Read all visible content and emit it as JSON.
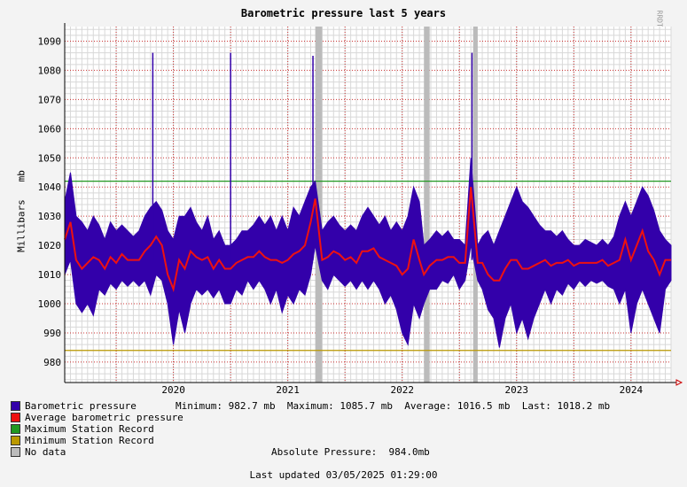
{
  "chart_data": {
    "type": "line",
    "title": "Barometric pressure last 5 years",
    "ylabel": "Millibars",
    "yunit": "mb",
    "ylim": [
      973,
      1095
    ],
    "yticks": [
      980,
      990,
      1000,
      1010,
      1020,
      1030,
      1040,
      1050,
      1060,
      1070,
      1080,
      1090
    ],
    "xlim": [
      2019.55,
      2024.85
    ],
    "xticks": [
      "2020",
      "2021",
      "2022",
      "2023",
      "2024"
    ],
    "grid": true,
    "series": [
      {
        "name": "Barometric pressure",
        "color": "#3300aa"
      },
      {
        "name": "Average barometric pressure",
        "color": "#ee1111"
      }
    ],
    "reference_lines": [
      {
        "name": "Maximum Station Record",
        "value": 1042,
        "color": "#229922"
      },
      {
        "name": "Minimum Station Record",
        "value": 984,
        "color": "#bb9900"
      }
    ],
    "no_data": [
      {
        "name": "No data",
        "from": 2021.74,
        "to": 2021.8
      },
      {
        "name": "No data",
        "from": 2022.69,
        "to": 2022.74
      },
      {
        "name": "No data",
        "from": 2023.12,
        "to": 2023.16
      }
    ],
    "spikes": [
      {
        "x": 2020.32,
        "y": 1086
      },
      {
        "x": 2021.0,
        "y": 1086
      },
      {
        "x": 2021.72,
        "y": 1085
      },
      {
        "x": 2023.11,
        "y": 1086
      }
    ],
    "envelope": [
      {
        "x": 2019.55,
        "lo": 1010,
        "hi": 1035,
        "avg": 1022
      },
      {
        "x": 2019.6,
        "lo": 1015,
        "hi": 1045,
        "avg": 1028
      },
      {
        "x": 2019.65,
        "lo": 1000,
        "hi": 1030,
        "avg": 1015
      },
      {
        "x": 2019.7,
        "lo": 997,
        "hi": 1028,
        "avg": 1012
      },
      {
        "x": 2019.75,
        "lo": 1000,
        "hi": 1025,
        "avg": 1014
      },
      {
        "x": 2019.8,
        "lo": 996,
        "hi": 1030,
        "avg": 1016
      },
      {
        "x": 2019.85,
        "lo": 1005,
        "hi": 1027,
        "avg": 1015
      },
      {
        "x": 2019.9,
        "lo": 1003,
        "hi": 1022,
        "avg": 1012
      },
      {
        "x": 2019.95,
        "lo": 1007,
        "hi": 1028,
        "avg": 1016
      },
      {
        "x": 2020.0,
        "lo": 1005,
        "hi": 1025,
        "avg": 1014
      },
      {
        "x": 2020.05,
        "lo": 1008,
        "hi": 1027,
        "avg": 1017
      },
      {
        "x": 2020.1,
        "lo": 1006,
        "hi": 1025,
        "avg": 1015
      },
      {
        "x": 2020.15,
        "lo": 1008,
        "hi": 1023,
        "avg": 1015
      },
      {
        "x": 2020.2,
        "lo": 1006,
        "hi": 1025,
        "avg": 1015
      },
      {
        "x": 2020.25,
        "lo": 1008,
        "hi": 1030,
        "avg": 1018
      },
      {
        "x": 2020.3,
        "lo": 1003,
        "hi": 1033,
        "avg": 1020
      },
      {
        "x": 2020.35,
        "lo": 1010,
        "hi": 1035,
        "avg": 1023
      },
      {
        "x": 2020.4,
        "lo": 1008,
        "hi": 1032,
        "avg": 1020
      },
      {
        "x": 2020.45,
        "lo": 1000,
        "hi": 1025,
        "avg": 1010
      },
      {
        "x": 2020.5,
        "lo": 986,
        "hi": 1022,
        "avg": 1005
      },
      {
        "x": 2020.55,
        "lo": 998,
        "hi": 1030,
        "avg": 1015
      },
      {
        "x": 2020.6,
        "lo": 990,
        "hi": 1030,
        "avg": 1012
      },
      {
        "x": 2020.65,
        "lo": 1000,
        "hi": 1033,
        "avg": 1018
      },
      {
        "x": 2020.7,
        "lo": 1005,
        "hi": 1028,
        "avg": 1016
      },
      {
        "x": 2020.75,
        "lo": 1003,
        "hi": 1025,
        "avg": 1015
      },
      {
        "x": 2020.8,
        "lo": 1005,
        "hi": 1030,
        "avg": 1016
      },
      {
        "x": 2020.85,
        "lo": 1002,
        "hi": 1022,
        "avg": 1012
      },
      {
        "x": 2020.9,
        "lo": 1005,
        "hi": 1025,
        "avg": 1015
      },
      {
        "x": 2020.95,
        "lo": 1000,
        "hi": 1020,
        "avg": 1012
      },
      {
        "x": 2021.0,
        "lo": 1000,
        "hi": 1020,
        "avg": 1012
      },
      {
        "x": 2021.05,
        "lo": 1005,
        "hi": 1022,
        "avg": 1014
      },
      {
        "x": 2021.1,
        "lo": 1003,
        "hi": 1025,
        "avg": 1015
      },
      {
        "x": 2021.15,
        "lo": 1008,
        "hi": 1025,
        "avg": 1016
      },
      {
        "x": 2021.2,
        "lo": 1005,
        "hi": 1027,
        "avg": 1016
      },
      {
        "x": 2021.25,
        "lo": 1008,
        "hi": 1030,
        "avg": 1018
      },
      {
        "x": 2021.3,
        "lo": 1005,
        "hi": 1027,
        "avg": 1016
      },
      {
        "x": 2021.35,
        "lo": 1000,
        "hi": 1030,
        "avg": 1015
      },
      {
        "x": 2021.4,
        "lo": 1005,
        "hi": 1025,
        "avg": 1015
      },
      {
        "x": 2021.45,
        "lo": 997,
        "hi": 1030,
        "avg": 1014
      },
      {
        "x": 2021.5,
        "lo": 1003,
        "hi": 1025,
        "avg": 1015
      },
      {
        "x": 2021.55,
        "lo": 1000,
        "hi": 1033,
        "avg": 1017
      },
      {
        "x": 2021.6,
        "lo": 1005,
        "hi": 1030,
        "avg": 1018
      },
      {
        "x": 2021.65,
        "lo": 1003,
        "hi": 1035,
        "avg": 1020
      },
      {
        "x": 2021.7,
        "lo": 1010,
        "hi": 1040,
        "avg": 1028
      },
      {
        "x": 2021.74,
        "lo": 1020,
        "hi": 1042,
        "avg": 1036
      },
      {
        "x": 2021.8,
        "lo": 1008,
        "hi": 1025,
        "avg": 1015
      },
      {
        "x": 2021.85,
        "lo": 1005,
        "hi": 1028,
        "avg": 1016
      },
      {
        "x": 2021.9,
        "lo": 1010,
        "hi": 1030,
        "avg": 1018
      },
      {
        "x": 2021.95,
        "lo": 1008,
        "hi": 1027,
        "avg": 1017
      },
      {
        "x": 2022.0,
        "lo": 1006,
        "hi": 1025,
        "avg": 1015
      },
      {
        "x": 2022.05,
        "lo": 1008,
        "hi": 1027,
        "avg": 1016
      },
      {
        "x": 2022.1,
        "lo": 1005,
        "hi": 1025,
        "avg": 1014
      },
      {
        "x": 2022.15,
        "lo": 1008,
        "hi": 1030,
        "avg": 1018
      },
      {
        "x": 2022.2,
        "lo": 1005,
        "hi": 1033,
        "avg": 1018
      },
      {
        "x": 2022.25,
        "lo": 1008,
        "hi": 1030,
        "avg": 1019
      },
      {
        "x": 2022.3,
        "lo": 1005,
        "hi": 1027,
        "avg": 1016
      },
      {
        "x": 2022.35,
        "lo": 1000,
        "hi": 1030,
        "avg": 1015
      },
      {
        "x": 2022.4,
        "lo": 1003,
        "hi": 1025,
        "avg": 1014
      },
      {
        "x": 2022.45,
        "lo": 998,
        "hi": 1028,
        "avg": 1013
      },
      {
        "x": 2022.5,
        "lo": 990,
        "hi": 1025,
        "avg": 1010
      },
      {
        "x": 2022.55,
        "lo": 986,
        "hi": 1030,
        "avg": 1012
      },
      {
        "x": 2022.6,
        "lo": 1000,
        "hi": 1040,
        "avg": 1022
      },
      {
        "x": 2022.65,
        "lo": 995,
        "hi": 1035,
        "avg": 1015
      },
      {
        "x": 2022.69,
        "lo": 1000,
        "hi": 1020,
        "avg": 1010
      },
      {
        "x": 2022.74,
        "lo": 1005,
        "hi": 1022,
        "avg": 1013
      },
      {
        "x": 2022.8,
        "lo": 1005,
        "hi": 1025,
        "avg": 1015
      },
      {
        "x": 2022.85,
        "lo": 1008,
        "hi": 1023,
        "avg": 1015
      },
      {
        "x": 2022.9,
        "lo": 1007,
        "hi": 1025,
        "avg": 1016
      },
      {
        "x": 2022.95,
        "lo": 1010,
        "hi": 1022,
        "avg": 1016
      },
      {
        "x": 2023.0,
        "lo": 1005,
        "hi": 1022,
        "avg": 1014
      },
      {
        "x": 2023.05,
        "lo": 1008,
        "hi": 1020,
        "avg": 1014
      },
      {
        "x": 2023.1,
        "lo": 1020,
        "hi": 1050,
        "avg": 1040
      },
      {
        "x": 2023.16,
        "lo": 1008,
        "hi": 1020,
        "avg": 1014
      },
      {
        "x": 2023.2,
        "lo": 1005,
        "hi": 1023,
        "avg": 1014
      },
      {
        "x": 2023.25,
        "lo": 998,
        "hi": 1025,
        "avg": 1010
      },
      {
        "x": 2023.3,
        "lo": 995,
        "hi": 1020,
        "avg": 1008
      },
      {
        "x": 2023.35,
        "lo": 985,
        "hi": 1025,
        "avg": 1008
      },
      {
        "x": 2023.4,
        "lo": 995,
        "hi": 1030,
        "avg": 1012
      },
      {
        "x": 2023.45,
        "lo": 1000,
        "hi": 1035,
        "avg": 1015
      },
      {
        "x": 2023.5,
        "lo": 990,
        "hi": 1040,
        "avg": 1015
      },
      {
        "x": 2023.55,
        "lo": 995,
        "hi": 1035,
        "avg": 1012
      },
      {
        "x": 2023.6,
        "lo": 988,
        "hi": 1033,
        "avg": 1012
      },
      {
        "x": 2023.65,
        "lo": 995,
        "hi": 1030,
        "avg": 1013
      },
      {
        "x": 2023.7,
        "lo": 1000,
        "hi": 1027,
        "avg": 1014
      },
      {
        "x": 2023.75,
        "lo": 1005,
        "hi": 1025,
        "avg": 1015
      },
      {
        "x": 2023.8,
        "lo": 1000,
        "hi": 1025,
        "avg": 1013
      },
      {
        "x": 2023.85,
        "lo": 1005,
        "hi": 1023,
        "avg": 1014
      },
      {
        "x": 2023.9,
        "lo": 1003,
        "hi": 1025,
        "avg": 1014
      },
      {
        "x": 2023.95,
        "lo": 1007,
        "hi": 1022,
        "avg": 1015
      },
      {
        "x": 2024.0,
        "lo": 1005,
        "hi": 1020,
        "avg": 1013
      },
      {
        "x": 2024.05,
        "lo": 1008,
        "hi": 1020,
        "avg": 1014
      },
      {
        "x": 2024.1,
        "lo": 1006,
        "hi": 1022,
        "avg": 1014
      },
      {
        "x": 2024.15,
        "lo": 1008,
        "hi": 1021,
        "avg": 1014
      },
      {
        "x": 2024.2,
        "lo": 1007,
        "hi": 1020,
        "avg": 1014
      },
      {
        "x": 2024.25,
        "lo": 1008,
        "hi": 1022,
        "avg": 1015
      },
      {
        "x": 2024.3,
        "lo": 1006,
        "hi": 1020,
        "avg": 1013
      },
      {
        "x": 2024.35,
        "lo": 1005,
        "hi": 1023,
        "avg": 1014
      },
      {
        "x": 2024.4,
        "lo": 1000,
        "hi": 1030,
        "avg": 1015
      },
      {
        "x": 2024.45,
        "lo": 1005,
        "hi": 1035,
        "avg": 1022
      },
      {
        "x": 2024.5,
        "lo": 990,
        "hi": 1030,
        "avg": 1015
      },
      {
        "x": 2024.55,
        "lo": 1000,
        "hi": 1035,
        "avg": 1020
      },
      {
        "x": 2024.6,
        "lo": 1005,
        "hi": 1040,
        "avg": 1025
      },
      {
        "x": 2024.65,
        "lo": 1000,
        "hi": 1037,
        "avg": 1018
      },
      {
        "x": 2024.7,
        "lo": 995,
        "hi": 1032,
        "avg": 1015
      },
      {
        "x": 2024.75,
        "lo": 990,
        "hi": 1025,
        "avg": 1010
      },
      {
        "x": 2024.8,
        "lo": 1005,
        "hi": 1022,
        "avg": 1015
      },
      {
        "x": 2024.85,
        "lo": 1008,
        "hi": 1020,
        "avg": 1015
      }
    ]
  },
  "ylabel": "Millibars   mb",
  "watermark": "RRDTOOL / TOBI OETIKER",
  "legend": [
    {
      "label": "Barometric pressure",
      "color": "#3300aa"
    },
    {
      "label": "Average barometric pressure",
      "color": "#ee1111"
    },
    {
      "label": "Maximum Station Record",
      "color": "#229922"
    },
    {
      "label": "Minimum Station Record",
      "color": "#bb9900"
    },
    {
      "label": "No data",
      "color": "#bbbbbb"
    }
  ],
  "stats_text": "Minimum: 982.7 mb  Maximum: 1085.7 mb  Average: 1016.5 mb  Last: 1018.2 mb",
  "absolute_pressure": "Absolute Pressure:  984.0mb",
  "last_updated": "Last updated 03/05/2025 01:29:00"
}
